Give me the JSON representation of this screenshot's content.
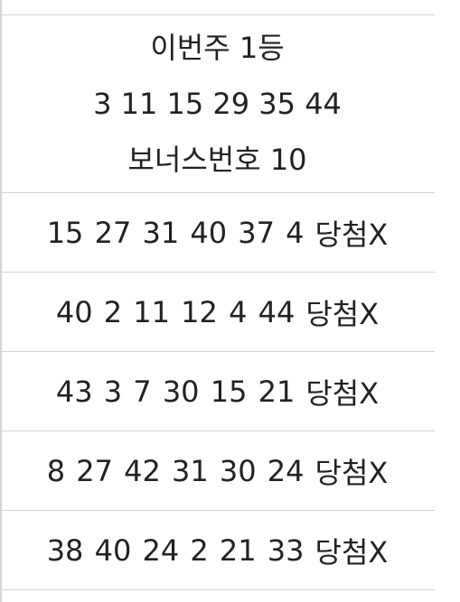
{
  "winning": {
    "title": "이번주 1등",
    "numbers": "3 11 15 29 35 44",
    "bonus": "보너스번호 10"
  },
  "tickets": [
    {
      "numbers": "15 27 31 40 37 4",
      "result": "당첨X"
    },
    {
      "numbers": "40 2 11 12 4 44",
      "result": "당첨X"
    },
    {
      "numbers": "43 3 7 30 15 21",
      "result": "당첨X"
    },
    {
      "numbers": "8 27 42 31 30 24",
      "result": "당첨X"
    },
    {
      "numbers": "38 40 24 2 21 33",
      "result": "당첨X"
    }
  ]
}
